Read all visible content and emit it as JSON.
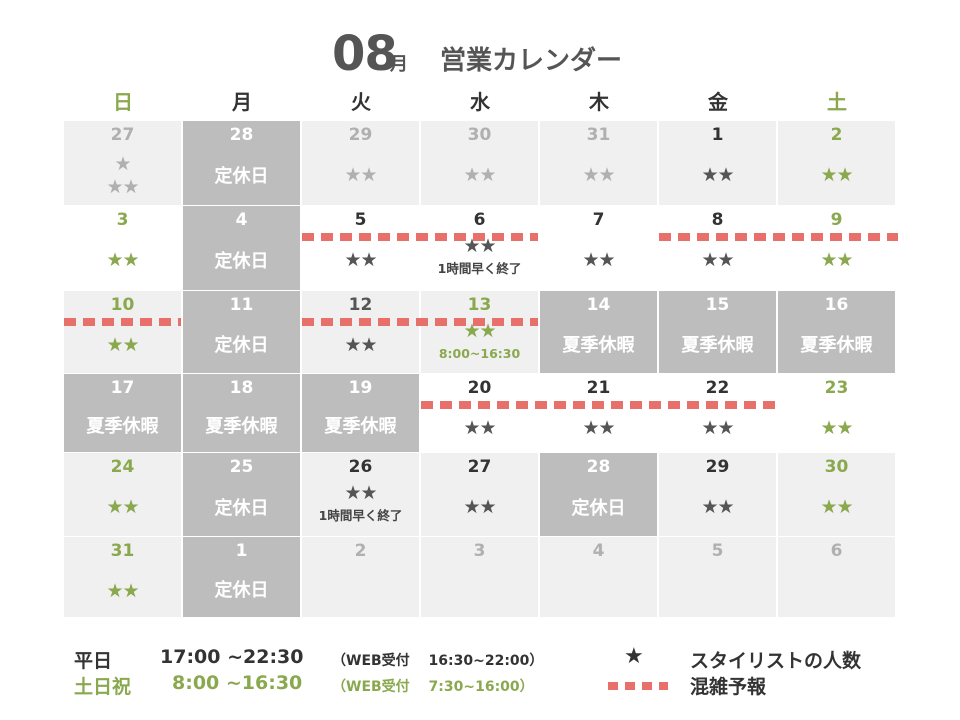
{
  "title": {
    "month": "08",
    "unit": "月",
    "name": "営業カレンダー"
  },
  "colors": {
    "weekend": "#8aa84e",
    "closed": "#bdbdbd",
    "cell": "#f0f0f0",
    "muted": "#b0b0b0",
    "text": "#333333",
    "crowd": "#e8706b"
  },
  "weekdays": [
    "日",
    "月",
    "火",
    "水",
    "木",
    "金",
    "土"
  ],
  "weeks": [
    [
      {
        "day": "27",
        "type": "other",
        "stars": "★",
        "stars2": "★★"
      },
      {
        "day": "28",
        "type": "closed",
        "label": "定休日"
      },
      {
        "day": "29",
        "type": "other",
        "stars": "★★"
      },
      {
        "day": "30",
        "type": "other",
        "stars": "★★"
      },
      {
        "day": "31",
        "type": "other",
        "stars": "★★"
      },
      {
        "day": "1",
        "type": "normal",
        "stars": "★★"
      },
      {
        "day": "2",
        "type": "normal",
        "stars": "★★"
      }
    ],
    [
      {
        "day": "3",
        "type": "normal",
        "stars": "★★"
      },
      {
        "day": "4",
        "type": "closed",
        "label": "定休日"
      },
      {
        "day": "5",
        "type": "normal",
        "stars": "★★"
      },
      {
        "day": "6",
        "type": "normal",
        "stars": "★★",
        "note": "1時間早く終了"
      },
      {
        "day": "7",
        "type": "normal",
        "stars": "★★"
      },
      {
        "day": "8",
        "type": "normal",
        "stars": "★★"
      },
      {
        "day": "9",
        "type": "normal",
        "stars": "★★"
      }
    ],
    [
      {
        "day": "10",
        "type": "normal",
        "stars": "★★"
      },
      {
        "day": "11",
        "type": "closed",
        "label": "定休日"
      },
      {
        "day": "12",
        "type": "normal",
        "stars": "★★"
      },
      {
        "day": "13",
        "type": "holiday",
        "stars": "★★",
        "note": "8:00~16:30"
      },
      {
        "day": "14",
        "type": "closed",
        "label": "夏季休暇"
      },
      {
        "day": "15",
        "type": "closed",
        "label": "夏季休暇"
      },
      {
        "day": "16",
        "type": "closed",
        "label": "夏季休暇"
      }
    ],
    [
      {
        "day": "17",
        "type": "closed",
        "label": "夏季休暇"
      },
      {
        "day": "18",
        "type": "closed",
        "label": "夏季休暇"
      },
      {
        "day": "19",
        "type": "closed",
        "label": "夏季休暇"
      },
      {
        "day": "20",
        "type": "normal",
        "stars": "★★"
      },
      {
        "day": "21",
        "type": "normal",
        "stars": "★★"
      },
      {
        "day": "22",
        "type": "normal",
        "stars": "★★"
      },
      {
        "day": "23",
        "type": "normal",
        "stars": "★★"
      }
    ],
    [
      {
        "day": "24",
        "type": "normal",
        "stars": "★★"
      },
      {
        "day": "25",
        "type": "closed",
        "label": "定休日"
      },
      {
        "day": "26",
        "type": "normal",
        "stars": "★★",
        "note": "1時間早く終了"
      },
      {
        "day": "27",
        "type": "normal",
        "stars": "★★"
      },
      {
        "day": "28",
        "type": "closed",
        "label": "定休日"
      },
      {
        "day": "29",
        "type": "normal",
        "stars": "★★"
      },
      {
        "day": "30",
        "type": "normal",
        "stars": "★★"
      }
    ],
    [
      {
        "day": "31",
        "type": "normal",
        "stars": "★★"
      },
      {
        "day": "1",
        "type": "closed",
        "label": "定休日"
      },
      {
        "day": "2",
        "type": "other"
      },
      {
        "day": "3",
        "type": "other"
      },
      {
        "day": "4",
        "type": "other"
      },
      {
        "day": "5",
        "type": "other"
      },
      {
        "day": "6",
        "type": "other"
      }
    ]
  ],
  "crowded": [
    {
      "week": 1,
      "from": 2,
      "to": 3
    },
    {
      "week": 1,
      "from": 5,
      "to": 6
    },
    {
      "week": 2,
      "from": 0,
      "to": 0
    },
    {
      "week": 2,
      "from": 2,
      "to": 3
    },
    {
      "week": 3,
      "from": 3,
      "to": 5
    }
  ],
  "hours": {
    "weekday": {
      "label": "平日",
      "time": "17:00 ~22:30",
      "web": "（WEB受付　 16:30~22:00）"
    },
    "weekend": {
      "label": "土日祝",
      "time": "8:00 ~16:30",
      "web": "（WEB受付　 7:30~16:00）"
    }
  },
  "legend": {
    "star_symbol": "★",
    "star_text": "スタイリストの人数",
    "crowd_text": "混雑予報"
  }
}
